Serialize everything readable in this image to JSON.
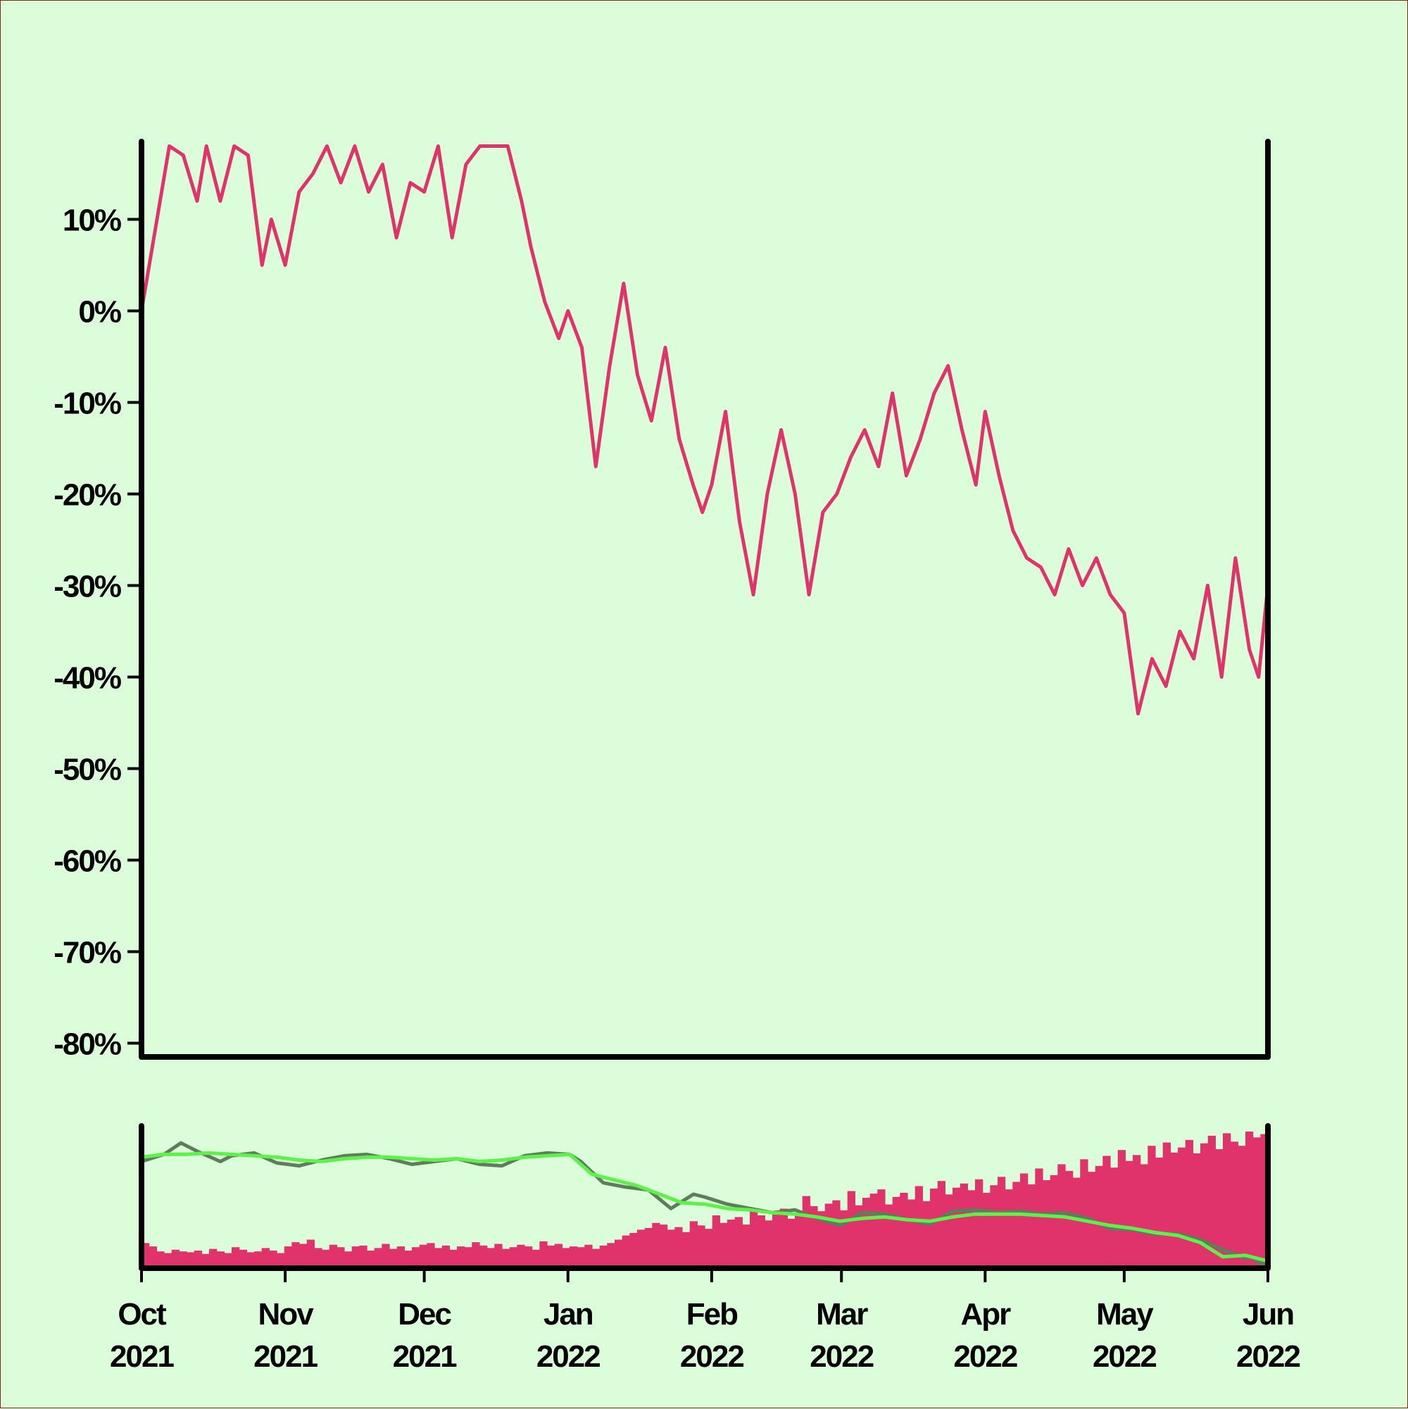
{
  "colors": {
    "background": "#dbfdd9",
    "price_line": "#e0336b",
    "volume_bars": "#e0336b",
    "ma_short": "#5e7d5a",
    "ma_long": "#5cf24a",
    "axis": "#000000"
  },
  "chart_data": {
    "type": "line",
    "title": "",
    "xlabel": "",
    "ylabel": "",
    "x_range": [
      "2021-10-01",
      "2022-06-01"
    ],
    "x_ticks": [
      {
        "date": "2021-10-01",
        "month": "Oct",
        "year": "2021"
      },
      {
        "date": "2021-11-01",
        "month": "Nov",
        "year": "2021"
      },
      {
        "date": "2021-12-01",
        "month": "Dec",
        "year": "2021"
      },
      {
        "date": "2022-01-01",
        "month": "Jan",
        "year": "2022"
      },
      {
        "date": "2022-02-01",
        "month": "Feb",
        "year": "2022"
      },
      {
        "date": "2022-03-01",
        "month": "Mar",
        "year": "2022"
      },
      {
        "date": "2022-04-01",
        "month": "Apr",
        "year": "2022"
      },
      {
        "date": "2022-05-01",
        "month": "May",
        "year": "2022"
      },
      {
        "date": "2022-06-01",
        "month": "Jun",
        "year": "2022"
      }
    ],
    "y_ticks": [
      {
        "value": 10,
        "label": "10%"
      },
      {
        "value": 0,
        "label": "0%"
      },
      {
        "value": -10,
        "label": "-10%"
      },
      {
        "value": -20,
        "label": "-20%"
      },
      {
        "value": -30,
        "label": "-30%"
      },
      {
        "value": -40,
        "label": "-40%"
      },
      {
        "value": -50,
        "label": "-50%"
      },
      {
        "value": -60,
        "label": "-60%"
      },
      {
        "value": -70,
        "label": "-70%"
      },
      {
        "value": -80,
        "label": "-80%"
      }
    ],
    "ylim": [
      -81.5,
      18.5
    ],
    "grid": false,
    "series": [
      {
        "values": [
          [
            "2021-10-01",
            0
          ],
          [
            "2021-10-04",
            9
          ],
          [
            "2021-10-07",
            18
          ],
          [
            "2021-10-10",
            17
          ],
          [
            "2021-10-13",
            12
          ],
          [
            "2021-10-15",
            18
          ],
          [
            "2021-10-18",
            12
          ],
          [
            "2021-10-21",
            18
          ],
          [
            "2021-10-24",
            17
          ],
          [
            "2021-10-27",
            5
          ],
          [
            "2021-10-29",
            10
          ],
          [
            "2021-11-01",
            5
          ],
          [
            "2021-11-04",
            13
          ],
          [
            "2021-11-07",
            15
          ],
          [
            "2021-11-10",
            18
          ],
          [
            "2021-11-13",
            14
          ],
          [
            "2021-11-16",
            18
          ],
          [
            "2021-11-19",
            13
          ],
          [
            "2021-11-22",
            16
          ],
          [
            "2021-11-25",
            8
          ],
          [
            "2021-11-28",
            14
          ],
          [
            "2021-12-01",
            13
          ],
          [
            "2021-12-04",
            18
          ],
          [
            "2021-12-07",
            8
          ],
          [
            "2021-12-10",
            16
          ],
          [
            "2021-12-13",
            18
          ],
          [
            "2021-12-16",
            18
          ],
          [
            "2021-12-19",
            18
          ],
          [
            "2021-12-22",
            12
          ],
          [
            "2021-12-24",
            7
          ],
          [
            "2021-12-27",
            1
          ],
          [
            "2021-12-30",
            -3
          ],
          [
            "2022-01-01",
            0
          ],
          [
            "2022-01-04",
            -4
          ],
          [
            "2022-01-07",
            -17
          ],
          [
            "2022-01-10",
            -6
          ],
          [
            "2022-01-13",
            3
          ],
          [
            "2022-01-16",
            -7
          ],
          [
            "2022-01-19",
            -12
          ],
          [
            "2022-01-22",
            -4
          ],
          [
            "2022-01-25",
            -14
          ],
          [
            "2022-01-28",
            -19
          ],
          [
            "2022-01-30",
            -22
          ],
          [
            "2022-02-01",
            -19
          ],
          [
            "2022-02-04",
            -11
          ],
          [
            "2022-02-07",
            -23
          ],
          [
            "2022-02-10",
            -31
          ],
          [
            "2022-02-13",
            -20
          ],
          [
            "2022-02-16",
            -13
          ],
          [
            "2022-02-19",
            -20
          ],
          [
            "2022-02-22",
            -31
          ],
          [
            "2022-02-25",
            -22
          ],
          [
            "2022-02-28",
            -20
          ],
          [
            "2022-03-03",
            -16
          ],
          [
            "2022-03-06",
            -13
          ],
          [
            "2022-03-09",
            -17
          ],
          [
            "2022-03-12",
            -9
          ],
          [
            "2022-03-15",
            -18
          ],
          [
            "2022-03-18",
            -14
          ],
          [
            "2022-03-21",
            -9
          ],
          [
            "2022-03-24",
            -6
          ],
          [
            "2022-03-27",
            -13
          ],
          [
            "2022-03-30",
            -19
          ],
          [
            "2022-04-01",
            -11
          ],
          [
            "2022-04-04",
            -18
          ],
          [
            "2022-04-07",
            -24
          ],
          [
            "2022-04-10",
            -27
          ],
          [
            "2022-04-13",
            -28
          ],
          [
            "2022-04-16",
            -31
          ],
          [
            "2022-04-19",
            -26
          ],
          [
            "2022-04-22",
            -30
          ],
          [
            "2022-04-25",
            -27
          ],
          [
            "2022-04-28",
            -31
          ],
          [
            "2022-05-01",
            -33
          ],
          [
            "2022-05-04",
            -44
          ],
          [
            "2022-05-07",
            -38
          ],
          [
            "2022-05-10",
            -41
          ],
          [
            "2022-05-13",
            -35
          ],
          [
            "2022-05-16",
            -38
          ],
          [
            "2022-05-19",
            -30
          ],
          [
            "2022-05-22",
            -40
          ],
          [
            "2022-05-25",
            -27
          ],
          [
            "2022-05-28",
            -37
          ],
          [
            "2022-05-30",
            -40
          ],
          [
            "2022-06-01",
            -30
          ]
        ]
      }
    ],
    "volume": [
      3.0,
      2.6,
      2.0,
      1.8,
      2.2,
      2.0,
      1.9,
      2.1,
      1.7,
      2.3,
      2.0,
      1.8,
      2.5,
      2.2,
      1.9,
      2.0,
      2.4,
      2.1,
      1.8,
      2.6,
      3.1,
      2.9,
      3.4,
      2.4,
      2.2,
      2.8,
      2.5,
      2.0,
      2.6,
      2.7,
      2.1,
      2.4,
      2.9,
      2.3,
      2.6,
      2.1,
      2.5,
      2.8,
      3.0,
      2.4,
      2.7,
      2.2,
      2.6,
      2.5,
      3.1,
      2.7,
      2.4,
      2.9,
      2.3,
      2.5,
      2.8,
      2.6,
      2.2,
      3.2,
      2.7,
      2.9,
      2.4,
      2.6,
      2.5,
      2.8,
      2.3,
      2.7,
      3.0,
      3.4,
      3.9,
      4.2,
      4.6,
      4.8,
      5.4,
      5.2,
      4.6,
      4.9,
      4.3,
      5.6,
      5.1,
      4.7,
      6.3,
      5.4,
      5.8,
      6.1,
      5.2,
      7.0,
      6.3,
      5.7,
      6.4,
      7.1,
      5.9,
      6.6,
      8.6,
      7.4,
      6.8,
      7.7,
      8.1,
      6.9,
      9.2,
      7.5,
      8.4,
      8.9,
      9.4,
      7.6,
      8.5,
      9.0,
      8.2,
      9.8,
      8.0,
      9.5,
      10.4,
      8.8,
      9.6,
      10.1,
      9.3,
      10.6,
      9.0,
      9.9,
      10.9,
      9.4,
      10.3,
      11.3,
      10.0,
      11.9,
      10.5,
      11.1,
      12.4,
      11.6,
      10.8,
      13.0,
      11.5,
      12.2,
      13.4,
      12.0,
      14.1,
      12.8,
      13.5,
      12.4,
      14.6,
      13.2,
      15.0,
      13.8,
      14.4,
      15.3,
      13.7,
      14.9,
      15.8,
      14.2,
      16.1,
      15.1,
      14.6,
      16.3,
      15.6,
      16.0
    ],
    "ma_short": [
      [
        0.0,
        75
      ],
      [
        0.02,
        80
      ],
      [
        0.035,
        88
      ],
      [
        0.05,
        82
      ],
      [
        0.07,
        75
      ],
      [
        0.08,
        79
      ],
      [
        0.1,
        81
      ],
      [
        0.12,
        74
      ],
      [
        0.14,
        72
      ],
      [
        0.16,
        76
      ],
      [
        0.18,
        79
      ],
      [
        0.2,
        80
      ],
      [
        0.22,
        77
      ],
      [
        0.24,
        73
      ],
      [
        0.26,
        75
      ],
      [
        0.28,
        77
      ],
      [
        0.3,
        73
      ],
      [
        0.32,
        72
      ],
      [
        0.34,
        79
      ],
      [
        0.36,
        81
      ],
      [
        0.38,
        80
      ],
      [
        0.39,
        75
      ],
      [
        0.41,
        60
      ],
      [
        0.43,
        57
      ],
      [
        0.45,
        55
      ],
      [
        0.47,
        42
      ],
      [
        0.49,
        52
      ],
      [
        0.5,
        50
      ],
      [
        0.52,
        45
      ],
      [
        0.54,
        42
      ],
      [
        0.56,
        39
      ],
      [
        0.58,
        41
      ],
      [
        0.6,
        35
      ],
      [
        0.62,
        30
      ],
      [
        0.64,
        39
      ],
      [
        0.66,
        38
      ],
      [
        0.68,
        34
      ],
      [
        0.7,
        31
      ],
      [
        0.72,
        40
      ],
      [
        0.74,
        41
      ],
      [
        0.76,
        39
      ],
      [
        0.78,
        40
      ],
      [
        0.8,
        38
      ],
      [
        0.82,
        39
      ],
      [
        0.84,
        35
      ],
      [
        0.86,
        28
      ],
      [
        0.88,
        27
      ],
      [
        0.9,
        24
      ],
      [
        0.92,
        24
      ],
      [
        0.94,
        20
      ],
      [
        0.96,
        13
      ],
      [
        0.98,
        7
      ],
      [
        0.985,
        8
      ],
      [
        1.0,
        0
      ]
    ],
    "ma_long": [
      [
        0.0,
        78
      ],
      [
        0.02,
        80
      ],
      [
        0.04,
        80
      ],
      [
        0.06,
        81
      ],
      [
        0.08,
        80
      ],
      [
        0.1,
        79
      ],
      [
        0.12,
        78
      ],
      [
        0.14,
        76
      ],
      [
        0.16,
        75
      ],
      [
        0.18,
        77
      ],
      [
        0.2,
        78
      ],
      [
        0.22,
        78
      ],
      [
        0.24,
        77
      ],
      [
        0.26,
        76
      ],
      [
        0.28,
        77
      ],
      [
        0.3,
        75
      ],
      [
        0.32,
        76
      ],
      [
        0.34,
        78
      ],
      [
        0.36,
        79
      ],
      [
        0.38,
        80
      ],
      [
        0.4,
        66
      ],
      [
        0.42,
        62
      ],
      [
        0.44,
        58
      ],
      [
        0.46,
        52
      ],
      [
        0.48,
        46
      ],
      [
        0.5,
        45
      ],
      [
        0.52,
        42
      ],
      [
        0.54,
        41
      ],
      [
        0.56,
        39
      ],
      [
        0.58,
        38
      ],
      [
        0.6,
        36
      ],
      [
        0.62,
        33
      ],
      [
        0.64,
        35
      ],
      [
        0.66,
        36
      ],
      [
        0.68,
        34
      ],
      [
        0.7,
        33
      ],
      [
        0.72,
        36
      ],
      [
        0.74,
        38
      ],
      [
        0.76,
        38
      ],
      [
        0.78,
        38
      ],
      [
        0.8,
        37
      ],
      [
        0.82,
        36
      ],
      [
        0.84,
        33
      ],
      [
        0.86,
        30
      ],
      [
        0.88,
        28
      ],
      [
        0.9,
        25
      ],
      [
        0.92,
        23
      ],
      [
        0.94,
        18
      ],
      [
        0.96,
        8
      ],
      [
        0.98,
        9
      ],
      [
        1.0,
        5
      ]
    ]
  }
}
